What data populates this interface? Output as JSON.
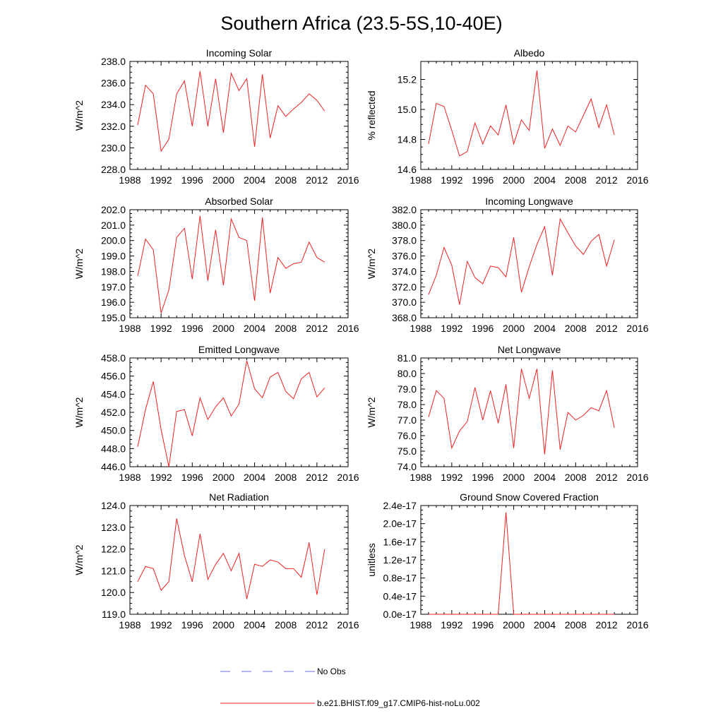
{
  "figure": {
    "title": "Southern Africa (23.5-5S,10-40E)",
    "legend": [
      {
        "label": "No Obs",
        "color": "#6a6adc",
        "dash": true
      },
      {
        "label": "b.e21.BHIST.f09_g17.CMIP6-hist-noLu.002",
        "color": "#ee2222",
        "dash": false
      }
    ]
  },
  "chart_data": [
    {
      "type": "line",
      "title": "Incoming Solar",
      "ylabel": "W/m^2",
      "xlim": [
        1988,
        2016
      ],
      "ylim": [
        228,
        238
      ],
      "xticks": [
        1988,
        1992,
        1996,
        2000,
        2004,
        2008,
        2012,
        2016
      ],
      "xtick_labels": [
        "1988",
        "1992",
        "1996",
        "2000",
        "2004",
        "2008",
        "2012",
        "2016"
      ],
      "yticks": [
        228,
        230,
        232,
        234,
        236,
        238
      ],
      "ytick_labels": [
        "228.0",
        "230.0",
        "232.0",
        "234.0",
        "236.0",
        "238.0"
      ],
      "series": [
        {
          "color": "#ee2222",
          "x": [
            1989,
            1990,
            1991,
            1992,
            1993,
            1994,
            1995,
            1996,
            1997,
            1998,
            1999,
            2000,
            2001,
            2002,
            2003,
            2004,
            2005,
            2006,
            2007,
            2008,
            2009,
            2010,
            2011,
            2012,
            2013
          ],
          "y": [
            232.1,
            235.8,
            235.0,
            229.7,
            230.8,
            235.0,
            236.2,
            232.0,
            237.1,
            232.0,
            236.4,
            231.4,
            236.9,
            235.3,
            236.4,
            230.1,
            236.8,
            230.9,
            233.9,
            232.9,
            233.6,
            234.2,
            235.0,
            234.4,
            233.4
          ]
        }
      ]
    },
    {
      "type": "line",
      "title": "Albedo",
      "ylabel": "% reflected",
      "xlim": [
        1988,
        2016
      ],
      "ylim": [
        14.6,
        15.32
      ],
      "xticks": [
        1988,
        1992,
        1996,
        2000,
        2004,
        2008,
        2012,
        2016
      ],
      "xtick_labels": [
        "1988",
        "1992",
        "1996",
        "2000",
        "2004",
        "2008",
        "2012",
        "2016"
      ],
      "yticks": [
        14.6,
        14.8,
        15.0,
        15.2
      ],
      "ytick_labels": [
        "14.6",
        "14.8",
        "15.0",
        "15.2"
      ],
      "series": [
        {
          "color": "#ee2222",
          "x": [
            1989,
            1990,
            1991,
            1992,
            1993,
            1994,
            1995,
            1996,
            1997,
            1998,
            1999,
            2000,
            2001,
            2002,
            2003,
            2004,
            2005,
            2006,
            2007,
            2008,
            2009,
            2010,
            2011,
            2012,
            2013
          ],
          "y": [
            14.77,
            15.04,
            15.02,
            14.86,
            14.69,
            14.72,
            14.91,
            14.77,
            14.89,
            14.83,
            15.03,
            14.77,
            14.93,
            14.86,
            15.26,
            14.74,
            14.87,
            14.76,
            14.89,
            14.85,
            14.96,
            15.07,
            14.88,
            15.03,
            14.83
          ]
        }
      ]
    },
    {
      "type": "line",
      "title": "Absorbed Solar",
      "ylabel": "W/m^2",
      "xlim": [
        1988,
        2016
      ],
      "ylim": [
        195,
        202
      ],
      "xticks": [
        1988,
        1992,
        1996,
        2000,
        2004,
        2008,
        2012,
        2016
      ],
      "xtick_labels": [
        "1988",
        "1992",
        "1996",
        "2000",
        "2004",
        "2008",
        "2012",
        "2016"
      ],
      "yticks": [
        195,
        196,
        197,
        198,
        199,
        200,
        201,
        202
      ],
      "ytick_labels": [
        "195.0",
        "196.0",
        "197.0",
        "198.0",
        "199.0",
        "200.0",
        "201.0",
        "202.0"
      ],
      "series": [
        {
          "color": "#ee2222",
          "x": [
            1989,
            1990,
            1991,
            1992,
            1993,
            1994,
            1995,
            1996,
            1997,
            1998,
            1999,
            2000,
            2001,
            2002,
            2003,
            2004,
            2005,
            2006,
            2007,
            2008,
            2009,
            2010,
            2011,
            2012,
            2013
          ],
          "y": [
            197.7,
            200.1,
            199.4,
            195.3,
            196.8,
            200.2,
            200.8,
            197.5,
            201.6,
            197.4,
            200.7,
            197.1,
            201.4,
            200.2,
            200.0,
            196.1,
            201.5,
            196.6,
            198.9,
            198.2,
            198.5,
            198.6,
            199.9,
            198.9,
            198.6
          ]
        }
      ]
    },
    {
      "type": "line",
      "title": "Incoming Longwave",
      "ylabel": "W/m^2",
      "xlim": [
        1988,
        2016
      ],
      "ylim": [
        368,
        382
      ],
      "xticks": [
        1988,
        1992,
        1996,
        2000,
        2004,
        2008,
        2012,
        2016
      ],
      "xtick_labels": [
        "1988",
        "1992",
        "1996",
        "2000",
        "2004",
        "2008",
        "2012",
        "2016"
      ],
      "yticks": [
        368,
        370,
        372,
        374,
        376,
        378,
        380,
        382
      ],
      "ytick_labels": [
        "368.0",
        "370.0",
        "372.0",
        "374.0",
        "376.0",
        "378.0",
        "380.0",
        "382.0"
      ],
      "series": [
        {
          "color": "#ee2222",
          "x": [
            1989,
            1990,
            1991,
            1992,
            1993,
            1994,
            1995,
            1996,
            1997,
            1998,
            1999,
            2000,
            2001,
            2002,
            2003,
            2004,
            2005,
            2006,
            2007,
            2008,
            2009,
            2010,
            2011,
            2012,
            2013
          ],
          "y": [
            371.0,
            373.5,
            377.1,
            374.8,
            369.7,
            375.3,
            373.2,
            372.4,
            374.7,
            374.5,
            373.3,
            378.4,
            371.3,
            374.6,
            377.5,
            379.8,
            373.5,
            380.8,
            379.0,
            377.3,
            376.2,
            377.9,
            378.8,
            374.7,
            378.1
          ]
        }
      ]
    },
    {
      "type": "line",
      "title": "Emitted Longwave",
      "ylabel": "W/m^2",
      "xlim": [
        1988,
        2016
      ],
      "ylim": [
        446,
        458
      ],
      "xticks": [
        1988,
        1992,
        1996,
        2000,
        2004,
        2008,
        2012,
        2016
      ],
      "xtick_labels": [
        "1988",
        "1992",
        "1996",
        "2000",
        "2004",
        "2008",
        "2012",
        "2016"
      ],
      "yticks": [
        446,
        448,
        450,
        452,
        454,
        456,
        458
      ],
      "ytick_labels": [
        "446.0",
        "448.0",
        "450.0",
        "452.0",
        "454.0",
        "456.0",
        "458.0"
      ],
      "series": [
        {
          "color": "#ee2222",
          "x": [
            1989,
            1990,
            1991,
            1992,
            1993,
            1994,
            1995,
            1996,
            1997,
            1998,
            1999,
            2000,
            2001,
            2002,
            2003,
            2004,
            2005,
            2006,
            2007,
            2008,
            2009,
            2010,
            2011,
            2012,
            2013
          ],
          "y": [
            448.2,
            452.3,
            455.4,
            450.1,
            446.0,
            452.1,
            452.3,
            449.4,
            453.6,
            451.2,
            452.6,
            453.6,
            451.6,
            452.9,
            457.7,
            454.6,
            453.6,
            455.9,
            456.4,
            454.3,
            453.5,
            455.7,
            456.4,
            453.7,
            454.7
          ]
        }
      ]
    },
    {
      "type": "line",
      "title": "Net Longwave",
      "ylabel": "W/m^2",
      "xlim": [
        1988,
        2016
      ],
      "ylim": [
        74,
        81
      ],
      "xticks": [
        1988,
        1992,
        1996,
        2000,
        2004,
        2008,
        2012,
        2016
      ],
      "xtick_labels": [
        "1988",
        "1992",
        "1996",
        "2000",
        "2004",
        "2008",
        "2012",
        "2016"
      ],
      "yticks": [
        74,
        75,
        76,
        77,
        78,
        79,
        80,
        81
      ],
      "ytick_labels": [
        "74.0",
        "75.0",
        "76.0",
        "77.0",
        "78.0",
        "79.0",
        "80.0",
        "81.0"
      ],
      "series": [
        {
          "color": "#ee2222",
          "x": [
            1989,
            1990,
            1991,
            1992,
            1993,
            1994,
            1995,
            1996,
            1997,
            1998,
            1999,
            2000,
            2001,
            2002,
            2003,
            2004,
            2005,
            2006,
            2007,
            2008,
            2009,
            2010,
            2011,
            2012,
            2013
          ],
          "y": [
            77.2,
            78.9,
            78.4,
            75.2,
            76.3,
            76.9,
            79.1,
            77.0,
            78.9,
            76.8,
            79.3,
            75.2,
            80.3,
            78.4,
            80.3,
            74.8,
            80.2,
            75.1,
            77.5,
            77.0,
            77.3,
            77.8,
            77.6,
            78.9,
            76.5
          ]
        }
      ]
    },
    {
      "type": "line",
      "title": "Net Radiation",
      "ylabel": "W/m^2",
      "xlim": [
        1988,
        2016
      ],
      "ylim": [
        119,
        124
      ],
      "xticks": [
        1988,
        1992,
        1996,
        2000,
        2004,
        2008,
        2012,
        2016
      ],
      "xtick_labels": [
        "1988",
        "1992",
        "1996",
        "2000",
        "2004",
        "2008",
        "2012",
        "2016"
      ],
      "yticks": [
        119,
        120,
        121,
        122,
        123,
        124
      ],
      "ytick_labels": [
        "119.0",
        "120.0",
        "121.0",
        "122.0",
        "123.0",
        "124.0"
      ],
      "series": [
        {
          "color": "#ee2222",
          "x": [
            1989,
            1990,
            1991,
            1992,
            1993,
            1994,
            1995,
            1996,
            1997,
            1998,
            1999,
            2000,
            2001,
            2002,
            2003,
            2004,
            2005,
            2006,
            2007,
            2008,
            2009,
            2010,
            2011,
            2012,
            2013
          ],
          "y": [
            120.5,
            121.2,
            121.1,
            120.1,
            120.5,
            123.4,
            121.7,
            120.5,
            122.7,
            120.6,
            121.3,
            121.8,
            121.0,
            121.8,
            119.7,
            121.3,
            121.2,
            121.5,
            121.4,
            121.1,
            121.1,
            120.7,
            122.3,
            119.9,
            122.0
          ]
        }
      ]
    },
    {
      "type": "line",
      "title": "Ground Snow Covered Fraction",
      "ylabel": "unitless",
      "xlim": [
        1988,
        2016
      ],
      "ylim": [
        0,
        2.4e-17
      ],
      "xticks": [
        1988,
        1992,
        1996,
        2000,
        2004,
        2008,
        2012,
        2016
      ],
      "xtick_labels": [
        "1988",
        "1992",
        "1996",
        "2000",
        "2004",
        "2008",
        "2012",
        "2016"
      ],
      "yticks": [
        0,
        4e-18,
        8e-18,
        1.2e-17,
        1.6e-17,
        2e-17,
        2.4e-17
      ],
      "ytick_labels": [
        "0.0e-17",
        "0.4e-17",
        "0.8e-17",
        "1.2e-17",
        "1.6e-17",
        "2.0e-17",
        "2.4e-17"
      ],
      "series": [
        {
          "color": "#ee2222",
          "x": [
            1989,
            1990,
            1991,
            1992,
            1993,
            1994,
            1995,
            1996,
            1997,
            1998,
            1999,
            2000,
            2001,
            2002,
            2003,
            2004,
            2005,
            2006,
            2007,
            2008,
            2009,
            2010,
            2011,
            2012,
            2013
          ],
          "y": [
            0,
            0,
            0,
            0,
            0,
            0,
            0,
            0,
            0,
            0,
            2.25e-17,
            0,
            0,
            0,
            0,
            0,
            0,
            0,
            0,
            0,
            0,
            0,
            0,
            0,
            0
          ]
        }
      ]
    }
  ]
}
